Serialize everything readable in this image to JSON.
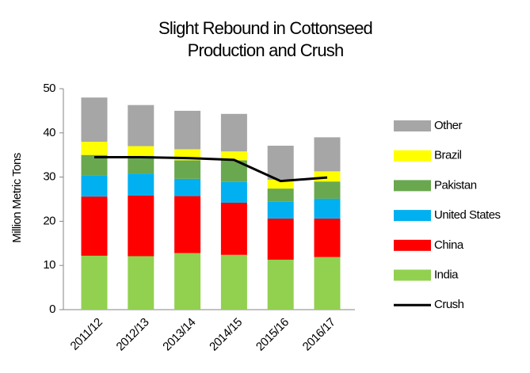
{
  "chart_data": {
    "type": "stacked_bar_line",
    "title": "Slight Rebound in Cottonseed Production and Crush",
    "y_label": "Million Metric Tons",
    "categories": [
      "2011/12",
      "2012/13",
      "2013/14",
      "2014/15",
      "2015/16",
      "2016/17"
    ],
    "series": [
      {
        "name": "India",
        "color": "#92d050",
        "values": [
          12.2,
          12.1,
          12.8,
          12.4,
          11.3,
          11.9
        ]
      },
      {
        "name": "China",
        "color": "#ff0000",
        "values": [
          13.4,
          13.7,
          12.9,
          11.8,
          9.3,
          8.7
        ]
      },
      {
        "name": "United States",
        "color": "#00b0f0",
        "values": [
          4.8,
          5.0,
          3.9,
          4.7,
          3.8,
          4.5
        ]
      },
      {
        "name": "Pakistan",
        "color": "#6aa84f",
        "values": [
          4.6,
          4.0,
          4.2,
          4.9,
          3.0,
          3.9
        ]
      },
      {
        "name": "Brazil",
        "color": "#ffff00",
        "values": [
          3.0,
          2.2,
          2.5,
          2.0,
          2.0,
          2.3
        ]
      },
      {
        "name": "Other",
        "color": "#a6a6a6",
        "values": [
          10.0,
          9.3,
          8.7,
          8.5,
          7.7,
          7.7
        ]
      }
    ],
    "line": {
      "name": "Crush",
      "color": "#000000",
      "values": [
        34.5,
        34.5,
        34.3,
        33.9,
        29.1,
        29.9
      ]
    },
    "ylim": [
      0,
      50
    ],
    "yticks": [
      0,
      10,
      20,
      30,
      40,
      50
    ],
    "grid": false,
    "legend": "right"
  }
}
